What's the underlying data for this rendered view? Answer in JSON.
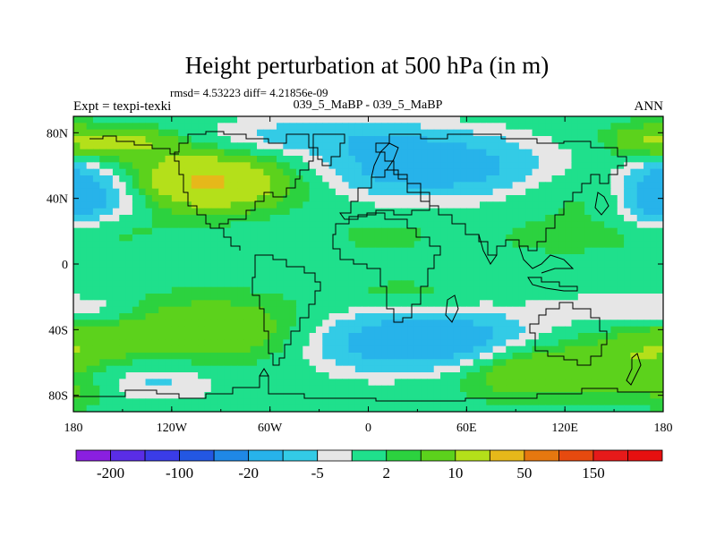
{
  "chart_data": {
    "type": "heatmap",
    "title": "Height perturbation at 500 hPa (in m)",
    "stats_label": "rmsd= 4.53223 diff= 4.21856e-09",
    "left_label": "Expt = texpi-texki",
    "center_label": "039_5_MaBP - 039_5_MaBP",
    "right_label": "ANN",
    "x_ticks": [
      {
        "label": "180",
        "lon": -180
      },
      {
        "label": "120W",
        "lon": -120
      },
      {
        "label": "60W",
        "lon": -60
      },
      {
        "label": "0",
        "lon": 0
      },
      {
        "label": "60E",
        "lon": 60
      },
      {
        "label": "120E",
        "lon": 120
      },
      {
        "label": "180",
        "lon": 180
      }
    ],
    "y_ticks": [
      {
        "label": "80N",
        "lat": 80
      },
      {
        "label": "40N",
        "lat": 40
      },
      {
        "label": "0",
        "lat": 0
      },
      {
        "label": "40S",
        "lat": -40
      },
      {
        "label": "80S",
        "lat": -80
      }
    ],
    "xlim": [
      -180,
      180
    ],
    "ylim": [
      -90,
      90
    ],
    "colorbar": {
      "levels": [
        -200,
        -150,
        -100,
        -50,
        -20,
        -10,
        -5,
        -2,
        2,
        5,
        10,
        20,
        50,
        100,
        150,
        200
      ],
      "colors": [
        "#8a1fe0",
        "#5a2de6",
        "#3a3ce8",
        "#2357e2",
        "#1f88e6",
        "#27b3ea",
        "#33cbe6",
        "#e6e6e6",
        "#1fe08c",
        "#2cd23f",
        "#5cd21c",
        "#b4e01a",
        "#e6b81a",
        "#e6780f",
        "#e64a0f",
        "#e61a1a",
        "#e61010"
      ],
      "labels": [
        {
          "text": "-200",
          "level": -200
        },
        {
          "text": "-100",
          "level": -100
        },
        {
          "text": "-20",
          "level": -20
        },
        {
          "text": "-5",
          "level": -5
        },
        {
          "text": "2",
          "level": 2
        },
        {
          "text": "10",
          "level": 10
        },
        {
          "text": "50",
          "level": 50
        },
        {
          "text": "150",
          "level": 150
        }
      ]
    },
    "anomalies": [
      {
        "lon": -170,
        "lat": 42,
        "slon": 28,
        "slat": 14,
        "amp": -14
      },
      {
        "lon": 178,
        "lat": 42,
        "slon": 12,
        "slat": 13,
        "amp": -10
      },
      {
        "lon": 38,
        "lat": 60,
        "slon": 45,
        "slat": 13,
        "amp": -16
      },
      {
        "lon": -35,
        "lat": 78,
        "slon": 50,
        "slat": 8,
        "amp": -7
      },
      {
        "lon": 140,
        "lat": 40,
        "slon": 30,
        "slat": 12,
        "amp": 4
      },
      {
        "lon": 48,
        "lat": -47,
        "slon": 40,
        "slat": 12,
        "amp": -18
      },
      {
        "lon": -10,
        "lat": -47,
        "slon": 30,
        "slat": 14,
        "amp": -6
      },
      {
        "lon": -130,
        "lat": -72,
        "slon": 28,
        "slat": 8,
        "amp": -6
      },
      {
        "lon": 150,
        "lat": -28,
        "slon": 30,
        "slat": 7,
        "amp": -5
      },
      {
        "lon": -170,
        "lat": -28,
        "slon": 18,
        "slat": 6,
        "amp": -4
      },
      {
        "lon": -100,
        "lat": 50,
        "slon": 35,
        "slat": 12,
        "amp": 22
      },
      {
        "lon": -150,
        "lat": 74,
        "slon": 25,
        "slat": 7,
        "amp": 12
      },
      {
        "lon": -160,
        "lat": 22,
        "slon": 28,
        "slat": 9,
        "amp": 5
      },
      {
        "lon": 168,
        "lat": 75,
        "slon": 18,
        "slat": 8,
        "amp": 8
      },
      {
        "lon": 120,
        "lat": 16,
        "slon": 30,
        "slat": 7,
        "amp": 4
      },
      {
        "lon": 10,
        "lat": 17,
        "slon": 22,
        "slat": 7,
        "amp": 3.5
      },
      {
        "lon": -95,
        "lat": -40,
        "slon": 45,
        "slat": 14,
        "amp": 10
      },
      {
        "lon": 20,
        "lat": -18,
        "slon": 28,
        "slat": 7,
        "amp": 3.5
      },
      {
        "lon": 95,
        "lat": -62,
        "slon": 30,
        "slat": 13,
        "amp": 12
      },
      {
        "lon": 160,
        "lat": -60,
        "slon": 25,
        "slat": 14,
        "amp": 8
      },
      {
        "lon": -170,
        "lat": -48,
        "slon": 20,
        "slat": 10,
        "amp": 5
      },
      {
        "lon": -175,
        "lat": -80,
        "slon": 15,
        "slat": 6,
        "amp": 4
      }
    ]
  }
}
